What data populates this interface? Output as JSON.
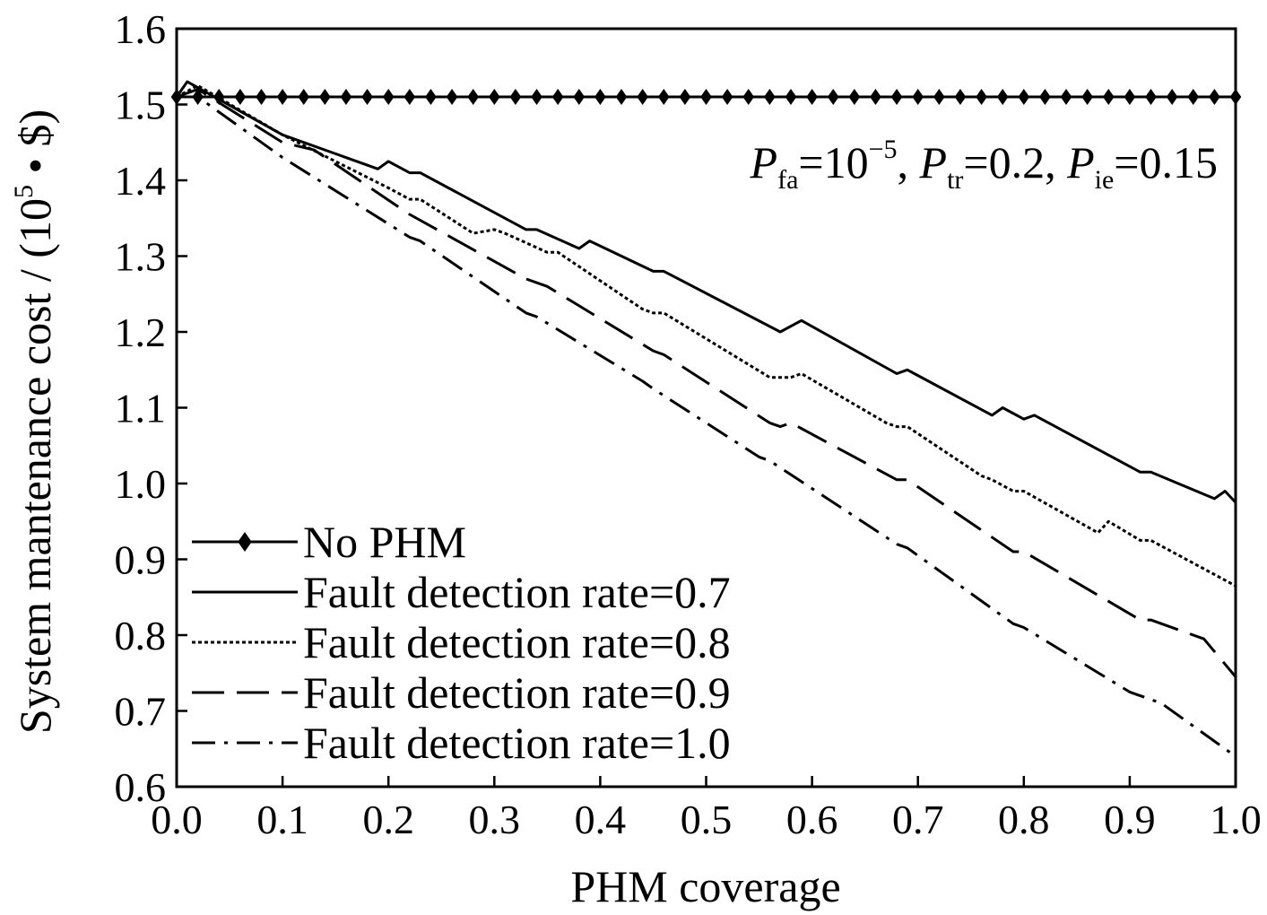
{
  "chart_data": {
    "type": "line",
    "xlabel": "PHM coverage",
    "ylabel": "System mantenance cost / (10",
    "ylabel_sup": "5",
    "ylabel_tail": " • $)",
    "xlim": [
      0.0,
      1.0
    ],
    "ylim": [
      0.6,
      1.6
    ],
    "xticks": [
      "0.0",
      "0.1",
      "0.2",
      "0.3",
      "0.4",
      "0.5",
      "0.6",
      "0.7",
      "0.8",
      "0.9",
      "1.0"
    ],
    "yticks": [
      "0.6",
      "0.7",
      "0.8",
      "0.9",
      "1.0",
      "1.1",
      "1.2",
      "1.3",
      "1.4",
      "1.5",
      "1.6"
    ],
    "annotation": {
      "p1": "P",
      "p1_sub": "fa",
      "p1_val": "=10",
      "p1_sup": "−5",
      "sep1": ", ",
      "p2": "P",
      "p2_sub": "tr",
      "p2_val": "=0.2",
      "sep2": ", ",
      "p3": "P",
      "p3_sub": "ie",
      "p3_val": "=0.15"
    },
    "legend_position": "lower-left",
    "series": [
      {
        "name": "No PHM",
        "style": "solid-diamond",
        "x": [
          0.0,
          1.0
        ],
        "y": [
          1.51,
          1.51
        ]
      },
      {
        "name": "Fault detection rate=0.7",
        "style": "solid",
        "x": [
          0.0,
          0.01,
          0.1,
          0.19,
          0.2,
          0.22,
          0.23,
          0.33,
          0.34,
          0.38,
          0.39,
          0.45,
          0.46,
          0.57,
          0.59,
          0.68,
          0.69,
          0.77,
          0.78,
          0.8,
          0.81,
          0.91,
          0.92,
          0.98,
          0.99,
          1.0
        ],
        "y": [
          1.51,
          1.53,
          1.46,
          1.415,
          1.425,
          1.41,
          1.41,
          1.335,
          1.335,
          1.31,
          1.32,
          1.28,
          1.28,
          1.2,
          1.215,
          1.145,
          1.15,
          1.09,
          1.1,
          1.085,
          1.09,
          1.015,
          1.015,
          0.98,
          0.99,
          0.975
        ]
      },
      {
        "name": "Fault detection rate=0.8",
        "style": "dotted",
        "x": [
          0.0,
          0.02,
          0.1,
          0.2,
          0.22,
          0.23,
          0.28,
          0.3,
          0.31,
          0.35,
          0.36,
          0.44,
          0.45,
          0.46,
          0.56,
          0.58,
          0.59,
          0.67,
          0.68,
          0.69,
          0.76,
          0.77,
          0.79,
          0.8,
          0.87,
          0.88,
          0.91,
          0.92,
          1.0
        ],
        "y": [
          1.51,
          1.525,
          1.46,
          1.39,
          1.375,
          1.375,
          1.33,
          1.335,
          1.33,
          1.305,
          1.305,
          1.23,
          1.225,
          1.225,
          1.14,
          1.14,
          1.145,
          1.08,
          1.075,
          1.075,
          1.01,
          1.005,
          0.99,
          0.99,
          0.935,
          0.95,
          0.925,
          0.925,
          0.865
        ]
      },
      {
        "name": "Fault detection rate=0.9",
        "style": "dashed",
        "x": [
          0.0,
          0.02,
          0.1,
          0.13,
          0.22,
          0.33,
          0.35,
          0.45,
          0.46,
          0.56,
          0.57,
          0.58,
          0.68,
          0.69,
          0.79,
          0.8,
          0.91,
          0.92,
          0.97,
          1.0
        ],
        "y": [
          1.51,
          1.52,
          1.45,
          1.44,
          1.355,
          1.27,
          1.26,
          1.175,
          1.17,
          1.08,
          1.075,
          1.08,
          1.005,
          1.005,
          0.91,
          0.91,
          0.82,
          0.82,
          0.795,
          0.745
        ]
      },
      {
        "name": "Fault detection rate=1.0",
        "style": "dashdot",
        "x": [
          0.0,
          0.02,
          0.1,
          0.22,
          0.23,
          0.33,
          0.34,
          0.44,
          0.45,
          0.55,
          0.56,
          0.68,
          0.69,
          0.79,
          0.8,
          0.9,
          0.91,
          0.93,
          1.0
        ],
        "y": [
          1.51,
          1.51,
          1.43,
          1.325,
          1.32,
          1.225,
          1.22,
          1.135,
          1.125,
          1.035,
          1.03,
          0.92,
          0.915,
          0.815,
          0.81,
          0.725,
          0.72,
          0.71,
          0.64
        ]
      }
    ]
  }
}
